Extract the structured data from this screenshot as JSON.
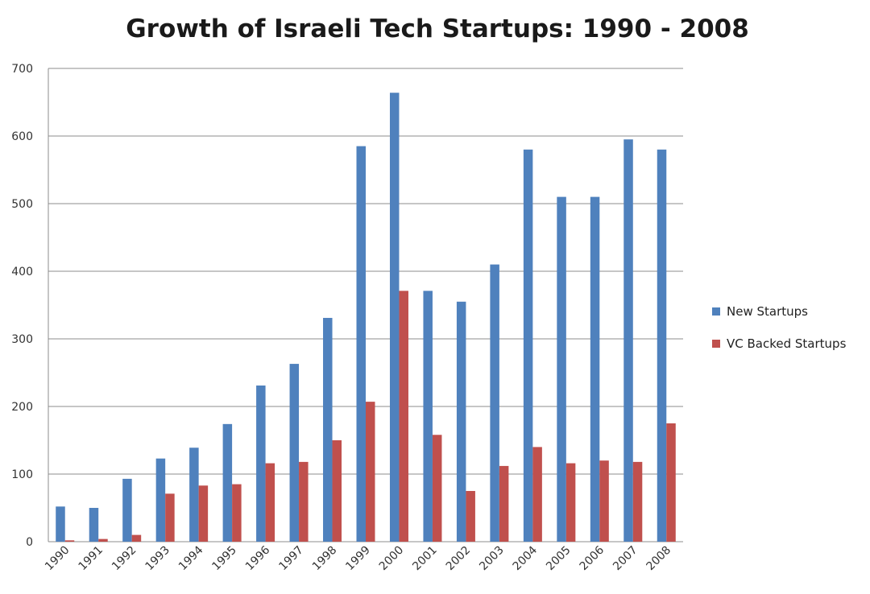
{
  "chart_data": {
    "type": "bar",
    "title": "Growth of Israeli Tech Startups: 1990 - 2008",
    "xlabel": "",
    "ylabel": "",
    "ylim": [
      0,
      700
    ],
    "yticks": [
      0,
      100,
      200,
      300,
      400,
      500,
      600,
      700
    ],
    "grid": true,
    "legend_position": "right",
    "categories": [
      "1990",
      "1991",
      "1992",
      "1993",
      "1994",
      "1995",
      "1996",
      "1997",
      "1998",
      "1999",
      "2000",
      "2001",
      "2002",
      "2003",
      "2004",
      "2005",
      "2006",
      "2007",
      "2008"
    ],
    "series": [
      {
        "name": "New Startups",
        "color": "#4f81bd",
        "values": [
          52,
          50,
          93,
          123,
          139,
          174,
          231,
          263,
          331,
          585,
          664,
          371,
          355,
          410,
          580,
          510,
          510,
          595,
          580
        ]
      },
      {
        "name": "VC Backed Startups",
        "color": "#c0504d",
        "values": [
          2,
          4,
          10,
          71,
          83,
          85,
          116,
          118,
          150,
          207,
          371,
          158,
          75,
          112,
          140,
          116,
          120,
          118,
          175
        ]
      }
    ]
  }
}
